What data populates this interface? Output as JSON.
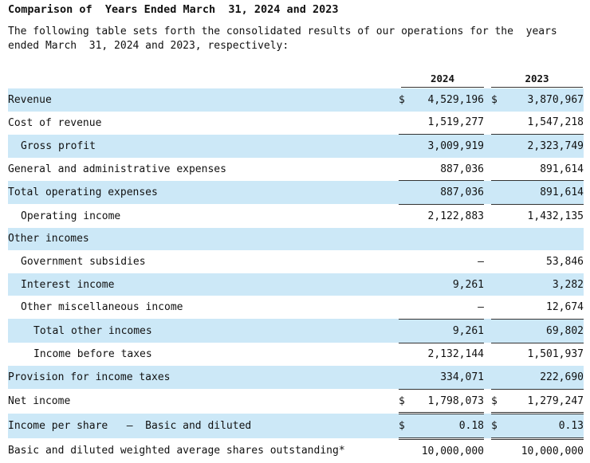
{
  "title": "Comparison of  Years Ended March  31, 2024 and 2023",
  "intro": "The following table sets forth the consolidated results of our operations for the  years ended March  31, 2024 and 2023, respectively:",
  "columns": [
    "2024",
    "2023"
  ],
  "rows": [
    {
      "label": "Revenue",
      "v2024": "4,529,196",
      "v2023": "3,870,967",
      "dollar": true
    },
    {
      "label": "Cost of revenue",
      "v2024": "1,519,277",
      "v2023": "1,547,218"
    },
    {
      "label": "Gross profit",
      "v2024": "3,009,919",
      "v2023": "2,323,749"
    },
    {
      "label": "General and administrative expenses",
      "v2024": "887,036",
      "v2023": "891,614"
    },
    {
      "label": "Total operating expenses",
      "v2024": "887,036",
      "v2023": "891,614"
    },
    {
      "label": "Operating income",
      "v2024": "2,122,883",
      "v2023": "1,432,135"
    },
    {
      "label": "Other incomes",
      "v2024": "",
      "v2023": ""
    },
    {
      "label": "Government subsidies",
      "v2024": "—",
      "v2023": "53,846"
    },
    {
      "label": "Interest income",
      "v2024": "9,261",
      "v2023": "3,282"
    },
    {
      "label": "Other miscellaneous income",
      "v2024": "—",
      "v2023": "12,674"
    },
    {
      "label": "Total other incomes",
      "v2024": "9,261",
      "v2023": "69,802"
    },
    {
      "label": "Income before taxes",
      "v2024": "2,132,144",
      "v2023": "1,501,937"
    },
    {
      "label": "Provision for income taxes",
      "v2024": "334,071",
      "v2023": "222,690"
    },
    {
      "label": "Net income",
      "v2024": "1,798,073",
      "v2023": "1,279,247",
      "dollar": true
    },
    {
      "label": "Income per share   –  Basic and diluted",
      "v2024": "0.18",
      "v2023": "0.13",
      "dollar": true
    },
    {
      "label": "Basic and diluted weighted average shares outstanding*",
      "v2024": "10,000,000",
      "v2023": "10,000,000"
    }
  ],
  "currency_symbol": "$",
  "colors": {
    "row_shade": "#cce8f7"
  }
}
